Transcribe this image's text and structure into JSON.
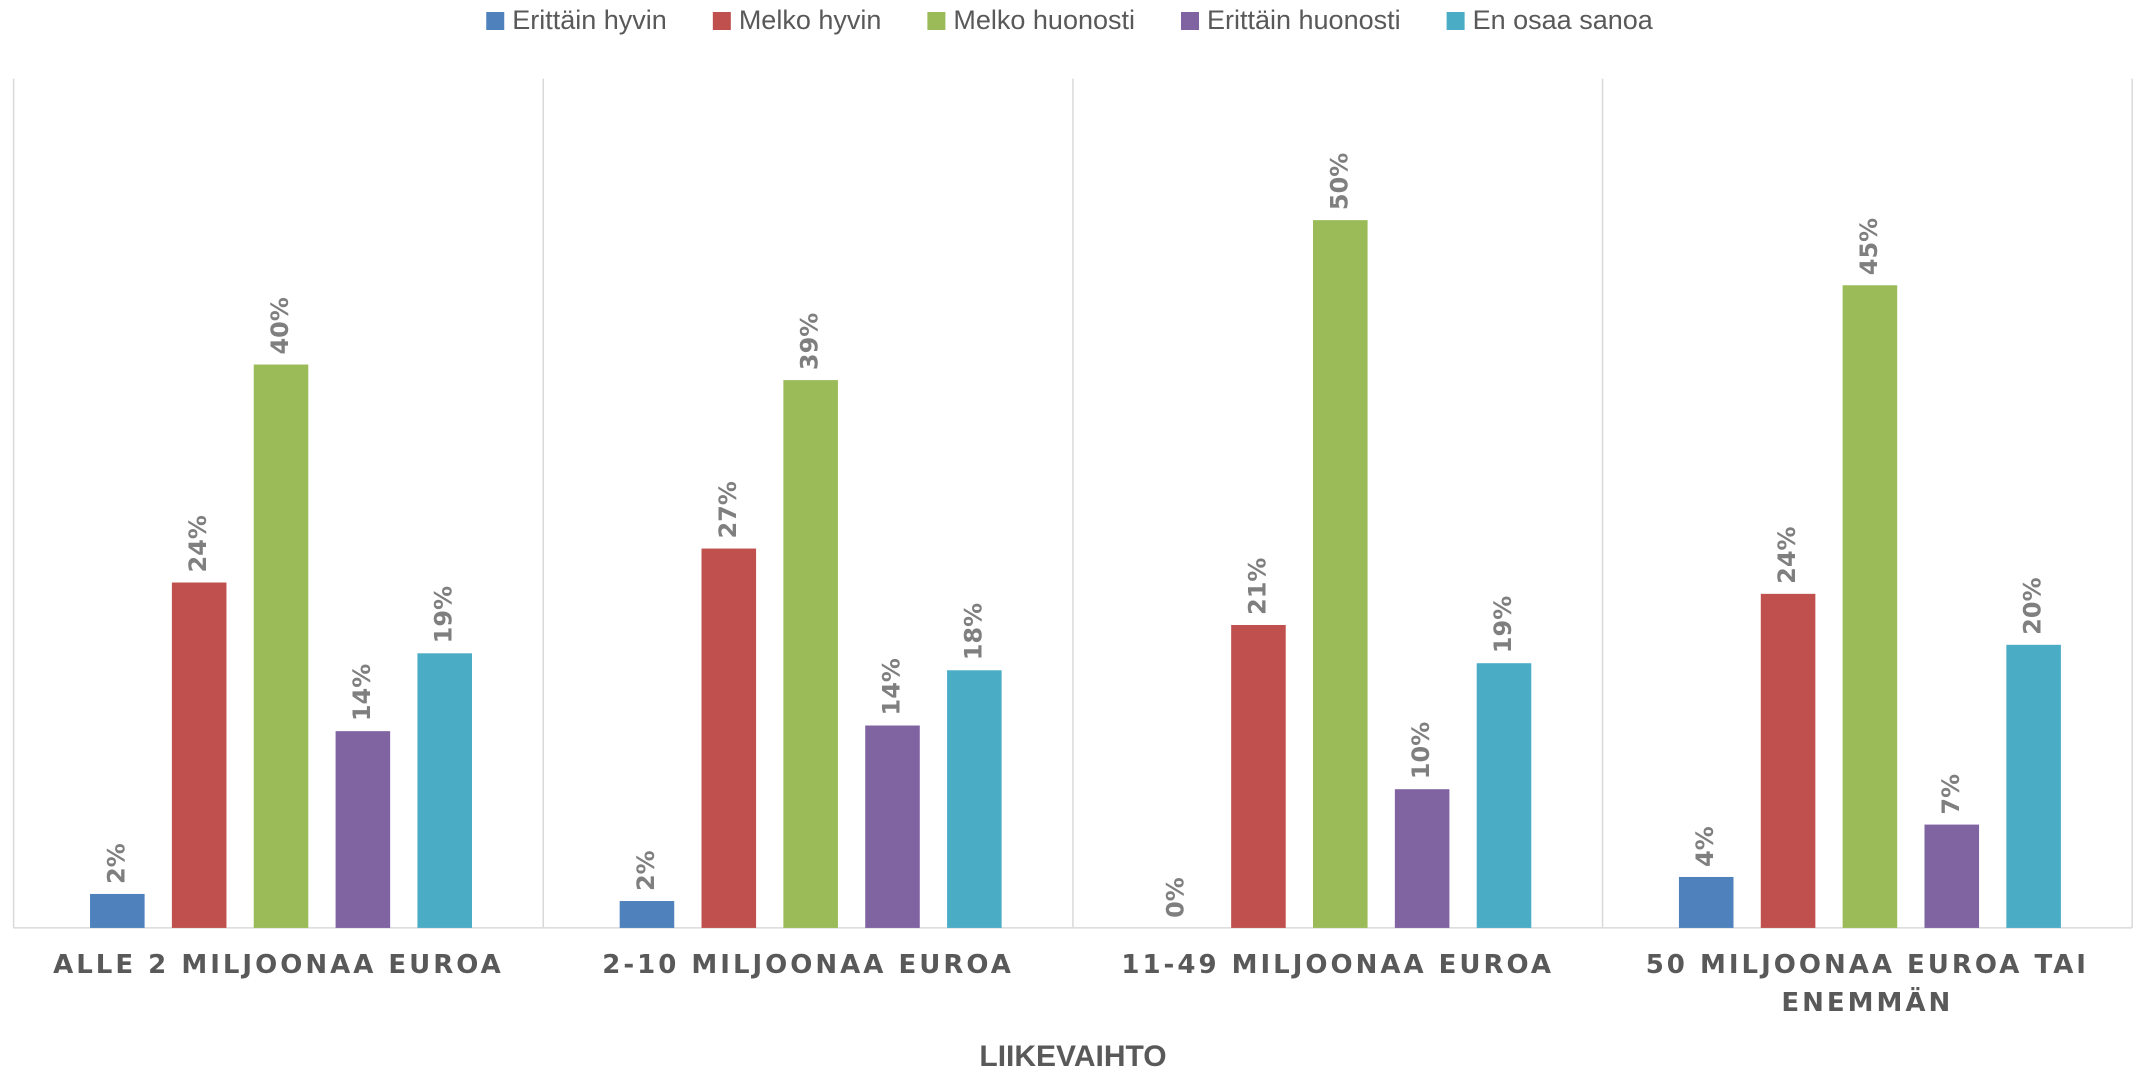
{
  "chart_data": {
    "type": "bar",
    "x_label": "LIIKEVAIHTO",
    "categories": [
      "ALLE 2 MILJOONAA EUROA",
      "2-10 MILJOONAA EUROA",
      "11-49 MILJOONAA EUROA",
      "50 MILJOONAA EUROA TAI ENEMMÄN"
    ],
    "series": [
      {
        "name": "Erittäin hyvin",
        "color": "#4f81bd",
        "values": [
          2.4,
          1.9,
          0,
          3.6
        ],
        "value_labels": [
          "2%",
          "2%",
          "0%",
          "4%"
        ]
      },
      {
        "name": "Melko hyvin",
        "color": "#c0504d",
        "values": [
          24.4,
          26.8,
          21.4,
          23.6
        ],
        "value_labels": [
          "24%",
          "27%",
          "21%",
          "24%"
        ]
      },
      {
        "name": "Melko huonosti",
        "color": "#9bbb59",
        "values": [
          39.8,
          38.7,
          50,
          45.4
        ],
        "value_labels": [
          "40%",
          "39%",
          "50%",
          "45%"
        ]
      },
      {
        "name": "Erittäin huonosti",
        "color": "#8064a2",
        "values": [
          13.9,
          14.3,
          9.8,
          7.3
        ],
        "value_labels": [
          "14%",
          "14%",
          "10%",
          "7%"
        ]
      },
      {
        "name": "En osaa sanoa",
        "color": "#4bacc6",
        "values": [
          19.4,
          18.2,
          18.7,
          20.0
        ],
        "value_labels": [
          "19%",
          "18%",
          "19%",
          "20%"
        ]
      }
    ],
    "ylim": [
      0,
      60
    ],
    "legend": "top"
  }
}
